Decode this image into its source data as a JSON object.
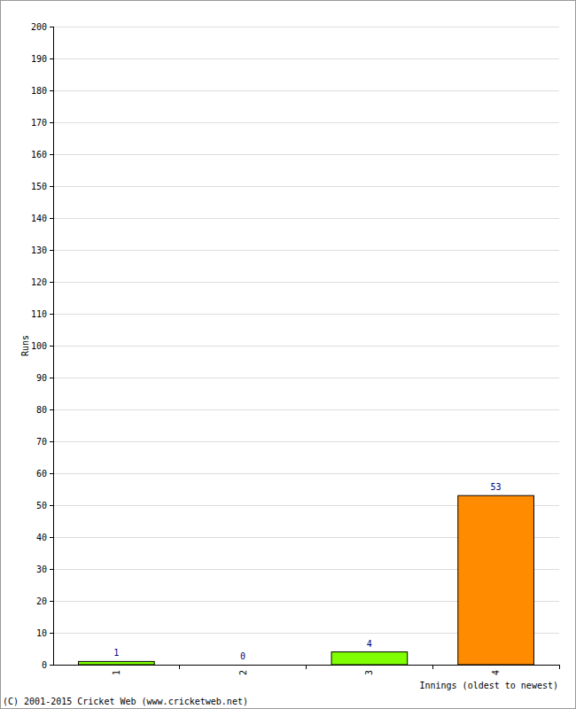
{
  "chart_data": {
    "type": "bar",
    "x_label": "Innings (oldest to newest)",
    "y_label": "Runs",
    "annotations": [
      "(C) 2001-2015 Cricket Web (www.cricketweb.net)"
    ],
    "categories": [
      "1",
      "2",
      "3",
      "4"
    ],
    "values": [
      1,
      0,
      4,
      53
    ],
    "colors": [
      "#80ff00",
      "#80ff00",
      "#80ff00",
      "#ff8c00"
    ],
    "ylim": [
      0,
      200
    ],
    "yticks": [
      0,
      10,
      20,
      30,
      40,
      50,
      60,
      70,
      80,
      90,
      100,
      110,
      120,
      130,
      140,
      150,
      160,
      170,
      180,
      190,
      200
    ],
    "grid": true,
    "data_labels": true
  }
}
